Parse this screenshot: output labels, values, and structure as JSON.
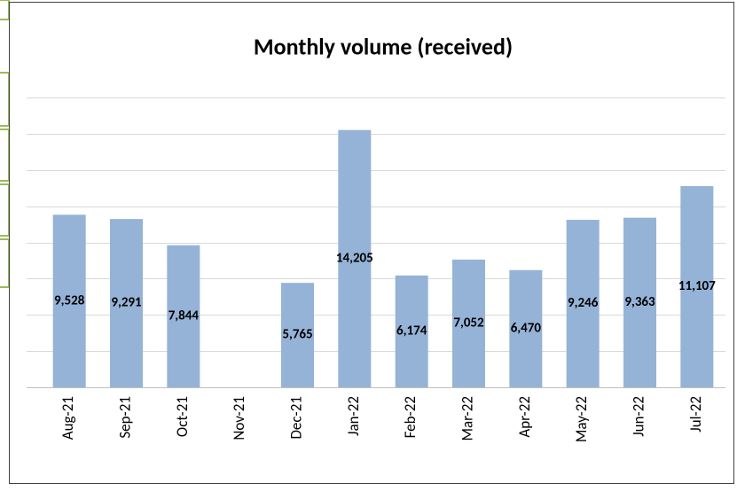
{
  "chart_data": {
    "type": "bar",
    "title": "Monthly volume (received)",
    "categories": [
      "Aug-21",
      "Sep-21",
      "Oct-21",
      "Nov-21",
      "Dec-21",
      "Jan-22",
      "Feb-22",
      "Mar-22",
      "Apr-22",
      "May-22",
      "Jun-22",
      "Jul-22"
    ],
    "values": [
      9528,
      9291,
      7844,
      null,
      5765,
      14205,
      6174,
      7052,
      6470,
      9246,
      9363,
      11107
    ],
    "value_labels": [
      "9,528",
      "9,291",
      "7,844",
      null,
      "5,765",
      "14,205",
      "6,174",
      "7,052",
      "6,470",
      "9,246",
      "9,363",
      "11,107"
    ],
    "color": "#95b3d7",
    "ylim": [
      0,
      16000
    ],
    "yticks": [
      0,
      2000,
      4000,
      6000,
      8000,
      10000,
      12000,
      14000,
      16000
    ],
    "grid": true
  }
}
